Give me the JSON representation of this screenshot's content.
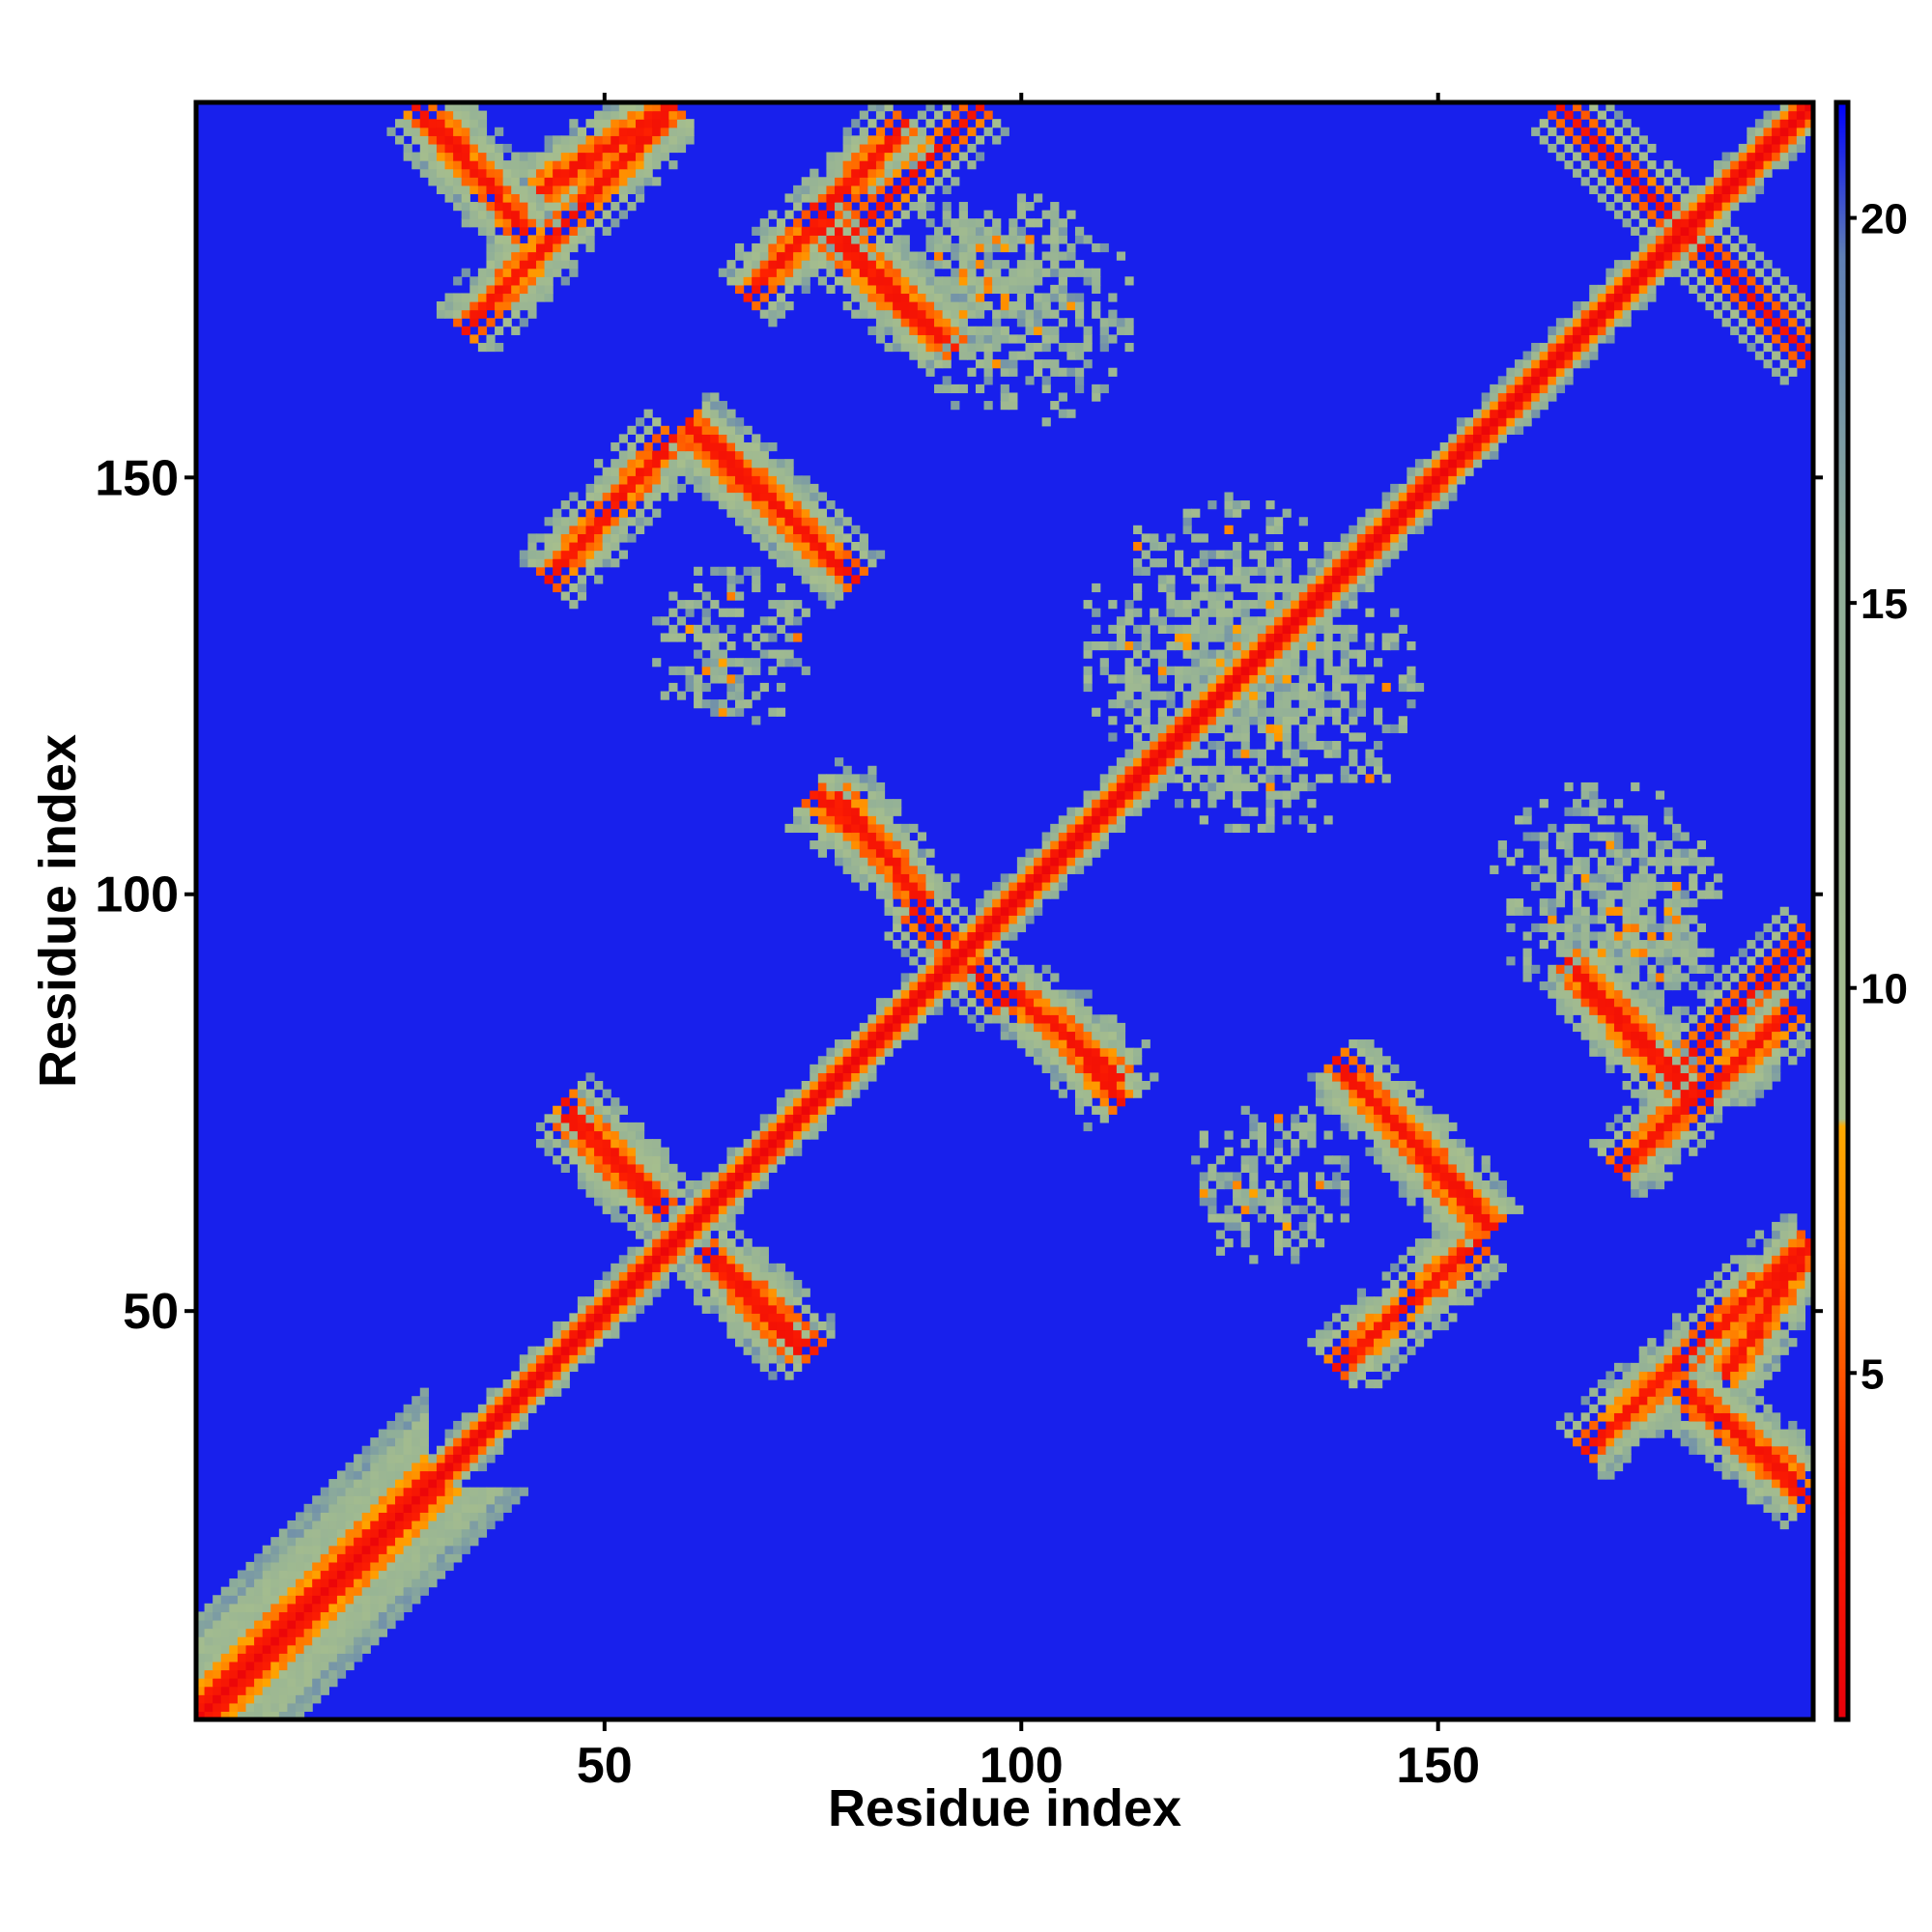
{
  "chart_data": {
    "type": "heatmap",
    "title": "",
    "xlabel": "Residue index",
    "ylabel": "Residue index",
    "n_residues": 195,
    "xlim": [
      1,
      195
    ],
    "ylim": [
      1,
      195
    ],
    "x_ticks": [
      50,
      100,
      150
    ],
    "y_ticks": [
      50,
      100,
      150
    ],
    "colorbar": {
      "ticks": [
        5,
        10,
        15,
        20
      ],
      "range": [
        0.5,
        21.5
      ],
      "stops": [
        {
          "value": 0.5,
          "color": "#e8000b"
        },
        {
          "value": 3.5,
          "color": "#ff2200"
        },
        {
          "value": 6.5,
          "color": "#ff8800"
        },
        {
          "value": 8.2,
          "color": "#ffaa00"
        },
        {
          "value": 8.3,
          "color": "#a9c08c"
        },
        {
          "value": 15.5,
          "color": "#8fae99"
        },
        {
          "value": 19.5,
          "color": "#5f7fb4"
        },
        {
          "value": 21.5,
          "color": "#0000ff"
        }
      ]
    },
    "background_value": 21,
    "features": [
      {
        "kind": "diagonal",
        "from": 1,
        "to": 195
      },
      {
        "kind": "band",
        "name": "n-terminal-strand-pair",
        "start": [
          1,
          1
        ],
        "end": [
          28,
          28
        ],
        "offset": 3
      },
      {
        "kind": "antiparallel",
        "start": [
          30,
          193
        ],
        "end": [
          40,
          180
        ]
      },
      {
        "kind": "parallel",
        "start": [
          33,
          168
        ],
        "end": [
          58,
          195
        ]
      },
      {
        "kind": "antiparallel",
        "start": [
          75,
          183
        ],
        "end": [
          92,
          166
        ]
      },
      {
        "kind": "parallel",
        "start": [
          67,
          172
        ],
        "end": [
          86,
          193
        ]
      },
      {
        "kind": "antiparallel",
        "start": [
          60,
          156
        ],
        "end": [
          80,
          138
        ]
      },
      {
        "kind": "parallel",
        "start": [
          43,
          138
        ],
        "end": [
          58,
          155
        ]
      },
      {
        "kind": "antiparallel",
        "start": [
          45,
          75
        ],
        "end": [
          57,
          62
        ]
      },
      {
        "kind": "antiparallel",
        "start": [
          62,
          57
        ],
        "end": [
          73,
          45
        ]
      },
      {
        "kind": "antiparallel",
        "start": [
          78,
          112
        ],
        "end": [
          88,
          99
        ]
      },
      {
        "kind": "antiparallel",
        "start": [
          87,
          98
        ],
        "end": [
          97,
          88
        ]
      },
      {
        "kind": "antiparallel",
        "start": [
          104,
          85
        ],
        "end": [
          112,
          75
        ]
      },
      {
        "kind": "antiparallel",
        "start": [
          140,
          78
        ],
        "end": [
          157,
          60
        ]
      },
      {
        "kind": "antiparallel",
        "start": [
          167,
          90
        ],
        "end": [
          180,
          76
        ]
      },
      {
        "kind": "antiparallel",
        "start": [
          183,
          38
        ],
        "end": [
          195,
          27
        ]
      },
      {
        "kind": "antiparallel",
        "start": [
          165,
          195
        ],
        "end": [
          195,
          165
        ]
      },
      {
        "kind": "parallel",
        "start": [
          185,
          42
        ],
        "end": [
          195,
          58
        ]
      },
      {
        "kind": "parallel",
        "start": [
          180,
          80
        ],
        "end": [
          195,
          95
        ]
      },
      {
        "kind": "patch",
        "center": [
          125,
          130
        ],
        "radius": 18
      },
      {
        "kind": "patch",
        "center": [
          170,
          100
        ],
        "radius": 14
      },
      {
        "kind": "patch",
        "center": [
          65,
          130
        ],
        "radius": 10
      },
      {
        "kind": "patch",
        "center": [
          95,
          175
        ],
        "radius": 12
      }
    ]
  }
}
